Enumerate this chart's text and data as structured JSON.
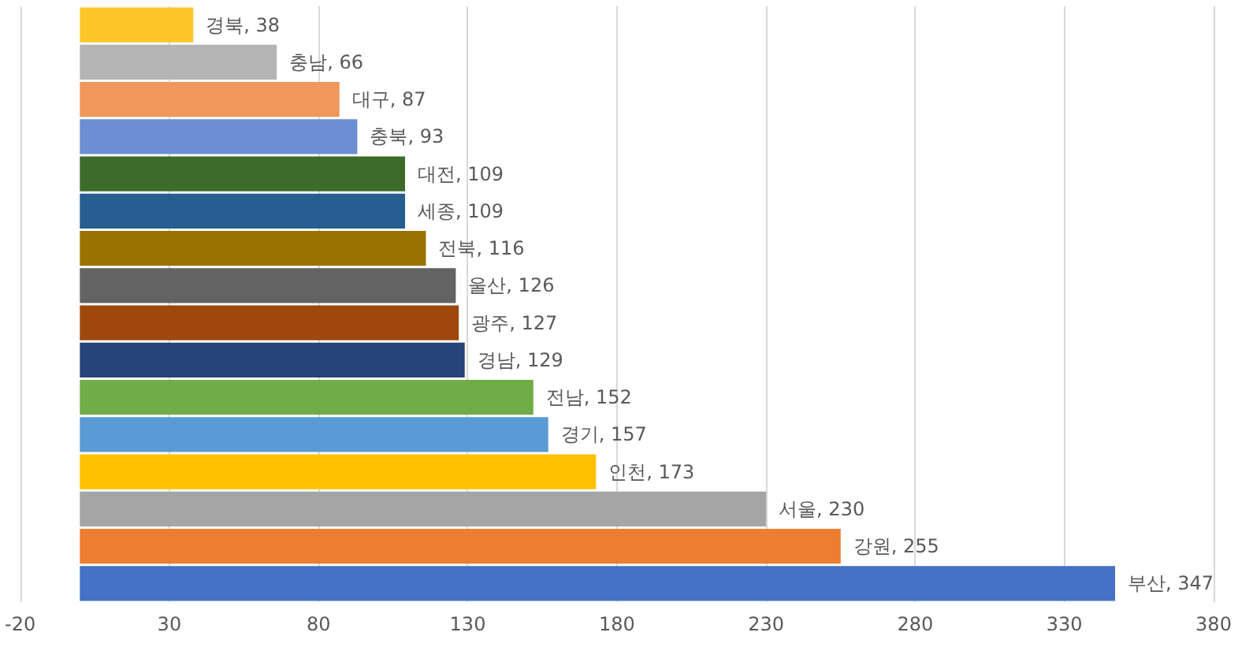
{
  "chart_data": {
    "type": "bar",
    "orientation": "horizontal",
    "categories": [
      null,
      null,
      null,
      null,
      null,
      null,
      null,
      null,
      null,
      null,
      null,
      null,
      null,
      null,
      null,
      null
    ],
    "values": [
      38,
      66,
      87,
      93,
      109,
      109,
      116,
      126,
      127,
      129,
      152,
      157,
      173,
      230,
      255,
      347
    ],
    "colors": [
      "#fcc62a",
      "#b4b4b4",
      "#f0975a",
      "#6b8fd2",
      "#3d6b2a",
      "#255e91",
      "#9a7200",
      "#636363",
      "#9e480e",
      "#264478",
      "#70ad47",
      "#5b9bd5",
      "#ffc000",
      "#a5a5a5",
      "#ed7d31",
      "#4472c4"
    ],
    "value_labels": [
      "경북, 38",
      "충남, 66",
      "대구, 87",
      "충북, 93",
      "대전, 109",
      "세종, 109",
      "전북, 116",
      "울산, 126",
      "광주, 127",
      "경남, 129",
      "전남, 152",
      "경기, 157",
      "인천, 173",
      "서울, 230",
      "강원, 255",
      "부산, 347"
    ],
    "xlim": [
      -20,
      380
    ],
    "xticks": [
      -20,
      30,
      80,
      130,
      180,
      230,
      280,
      330,
      380
    ],
    "grid": "x",
    "tick_labels": "x"
  }
}
